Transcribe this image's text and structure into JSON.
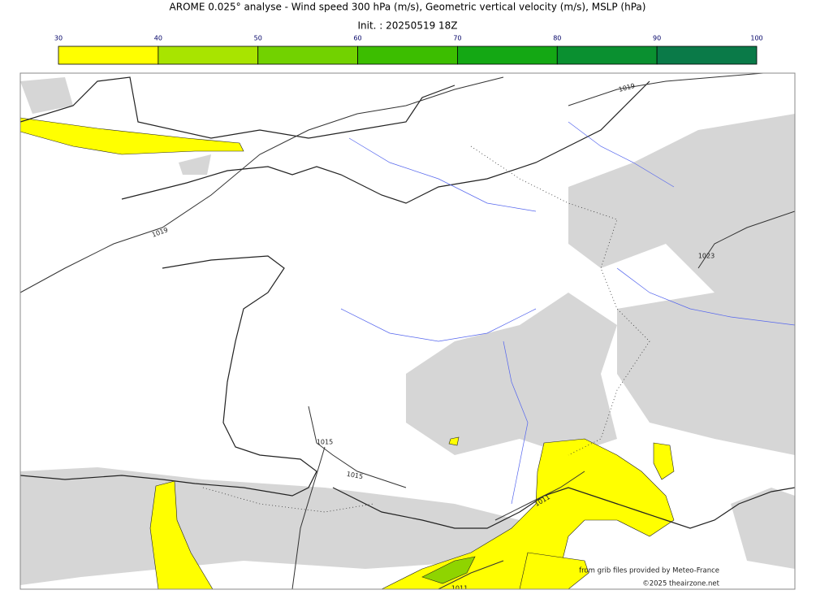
{
  "title": "AROME 0.025° analyse - Wind speed 300 hPa (m/s), Geometric vertical velocity (m/s), MSLP (hPa)",
  "subtitle": "Init. : 20250519 18Z",
  "colorbar": {
    "ticks": [
      30,
      40,
      50,
      60,
      70,
      80,
      90,
      100
    ],
    "colors": [
      "#ffff00",
      "#a8e400",
      "#72d200",
      "#3cbe00",
      "#14a814",
      "#0a9030",
      "#0a7a48"
    ]
  },
  "isobar_labels": [
    1019,
    1019,
    1023,
    1015,
    1015,
    1011,
    1011
  ],
  "credits": [
    "from grib files provided by Meteo-France",
    "©2025 theairzone.net"
  ]
}
